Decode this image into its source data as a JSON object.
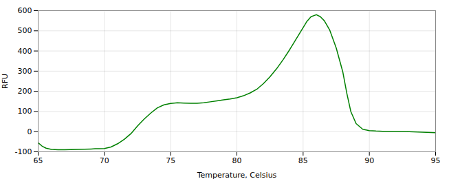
{
  "chart_data": {
    "type": "line",
    "xlabel": "Temperature, Celsius",
    "ylabel": "RFU",
    "x": [
      65,
      65.3,
      65.6,
      66,
      66.5,
      67,
      67.5,
      68,
      68.5,
      69,
      69.3,
      69.6,
      70,
      70.5,
      71,
      71.5,
      72,
      72.5,
      73,
      73.5,
      74,
      74.5,
      75,
      75.5,
      76,
      76.5,
      77,
      77.5,
      78,
      78.5,
      79,
      79.5,
      80,
      80.5,
      81,
      81.5,
      82,
      82.5,
      83,
      83.5,
      84,
      84.5,
      85,
      85.3,
      85.6,
      86,
      86.3,
      86.6,
      87,
      87.5,
      88,
      88.3,
      88.6,
      89,
      89.5,
      90,
      90.5,
      91,
      92,
      93,
      94,
      95
    ],
    "values": [
      -55,
      -72,
      -82,
      -88,
      -90,
      -90,
      -89,
      -88,
      -87,
      -86,
      -85,
      -85,
      -84,
      -76,
      -60,
      -38,
      -10,
      28,
      62,
      92,
      118,
      133,
      140,
      143,
      142,
      141,
      141,
      143,
      148,
      153,
      158,
      162,
      168,
      178,
      192,
      210,
      238,
      272,
      312,
      358,
      408,
      462,
      516,
      548,
      570,
      580,
      570,
      550,
      505,
      415,
      295,
      190,
      100,
      40,
      12,
      5,
      3,
      2,
      1,
      0,
      -3,
      -5
    ],
    "color": "#008000",
    "xlim": [
      65,
      95
    ],
    "ylim": [
      -100,
      600
    ],
    "xticks": [
      65,
      70,
      75,
      80,
      85,
      90,
      95
    ],
    "yticks": [
      -100,
      0,
      100,
      200,
      300,
      400,
      500,
      600
    ],
    "grid": true
  }
}
